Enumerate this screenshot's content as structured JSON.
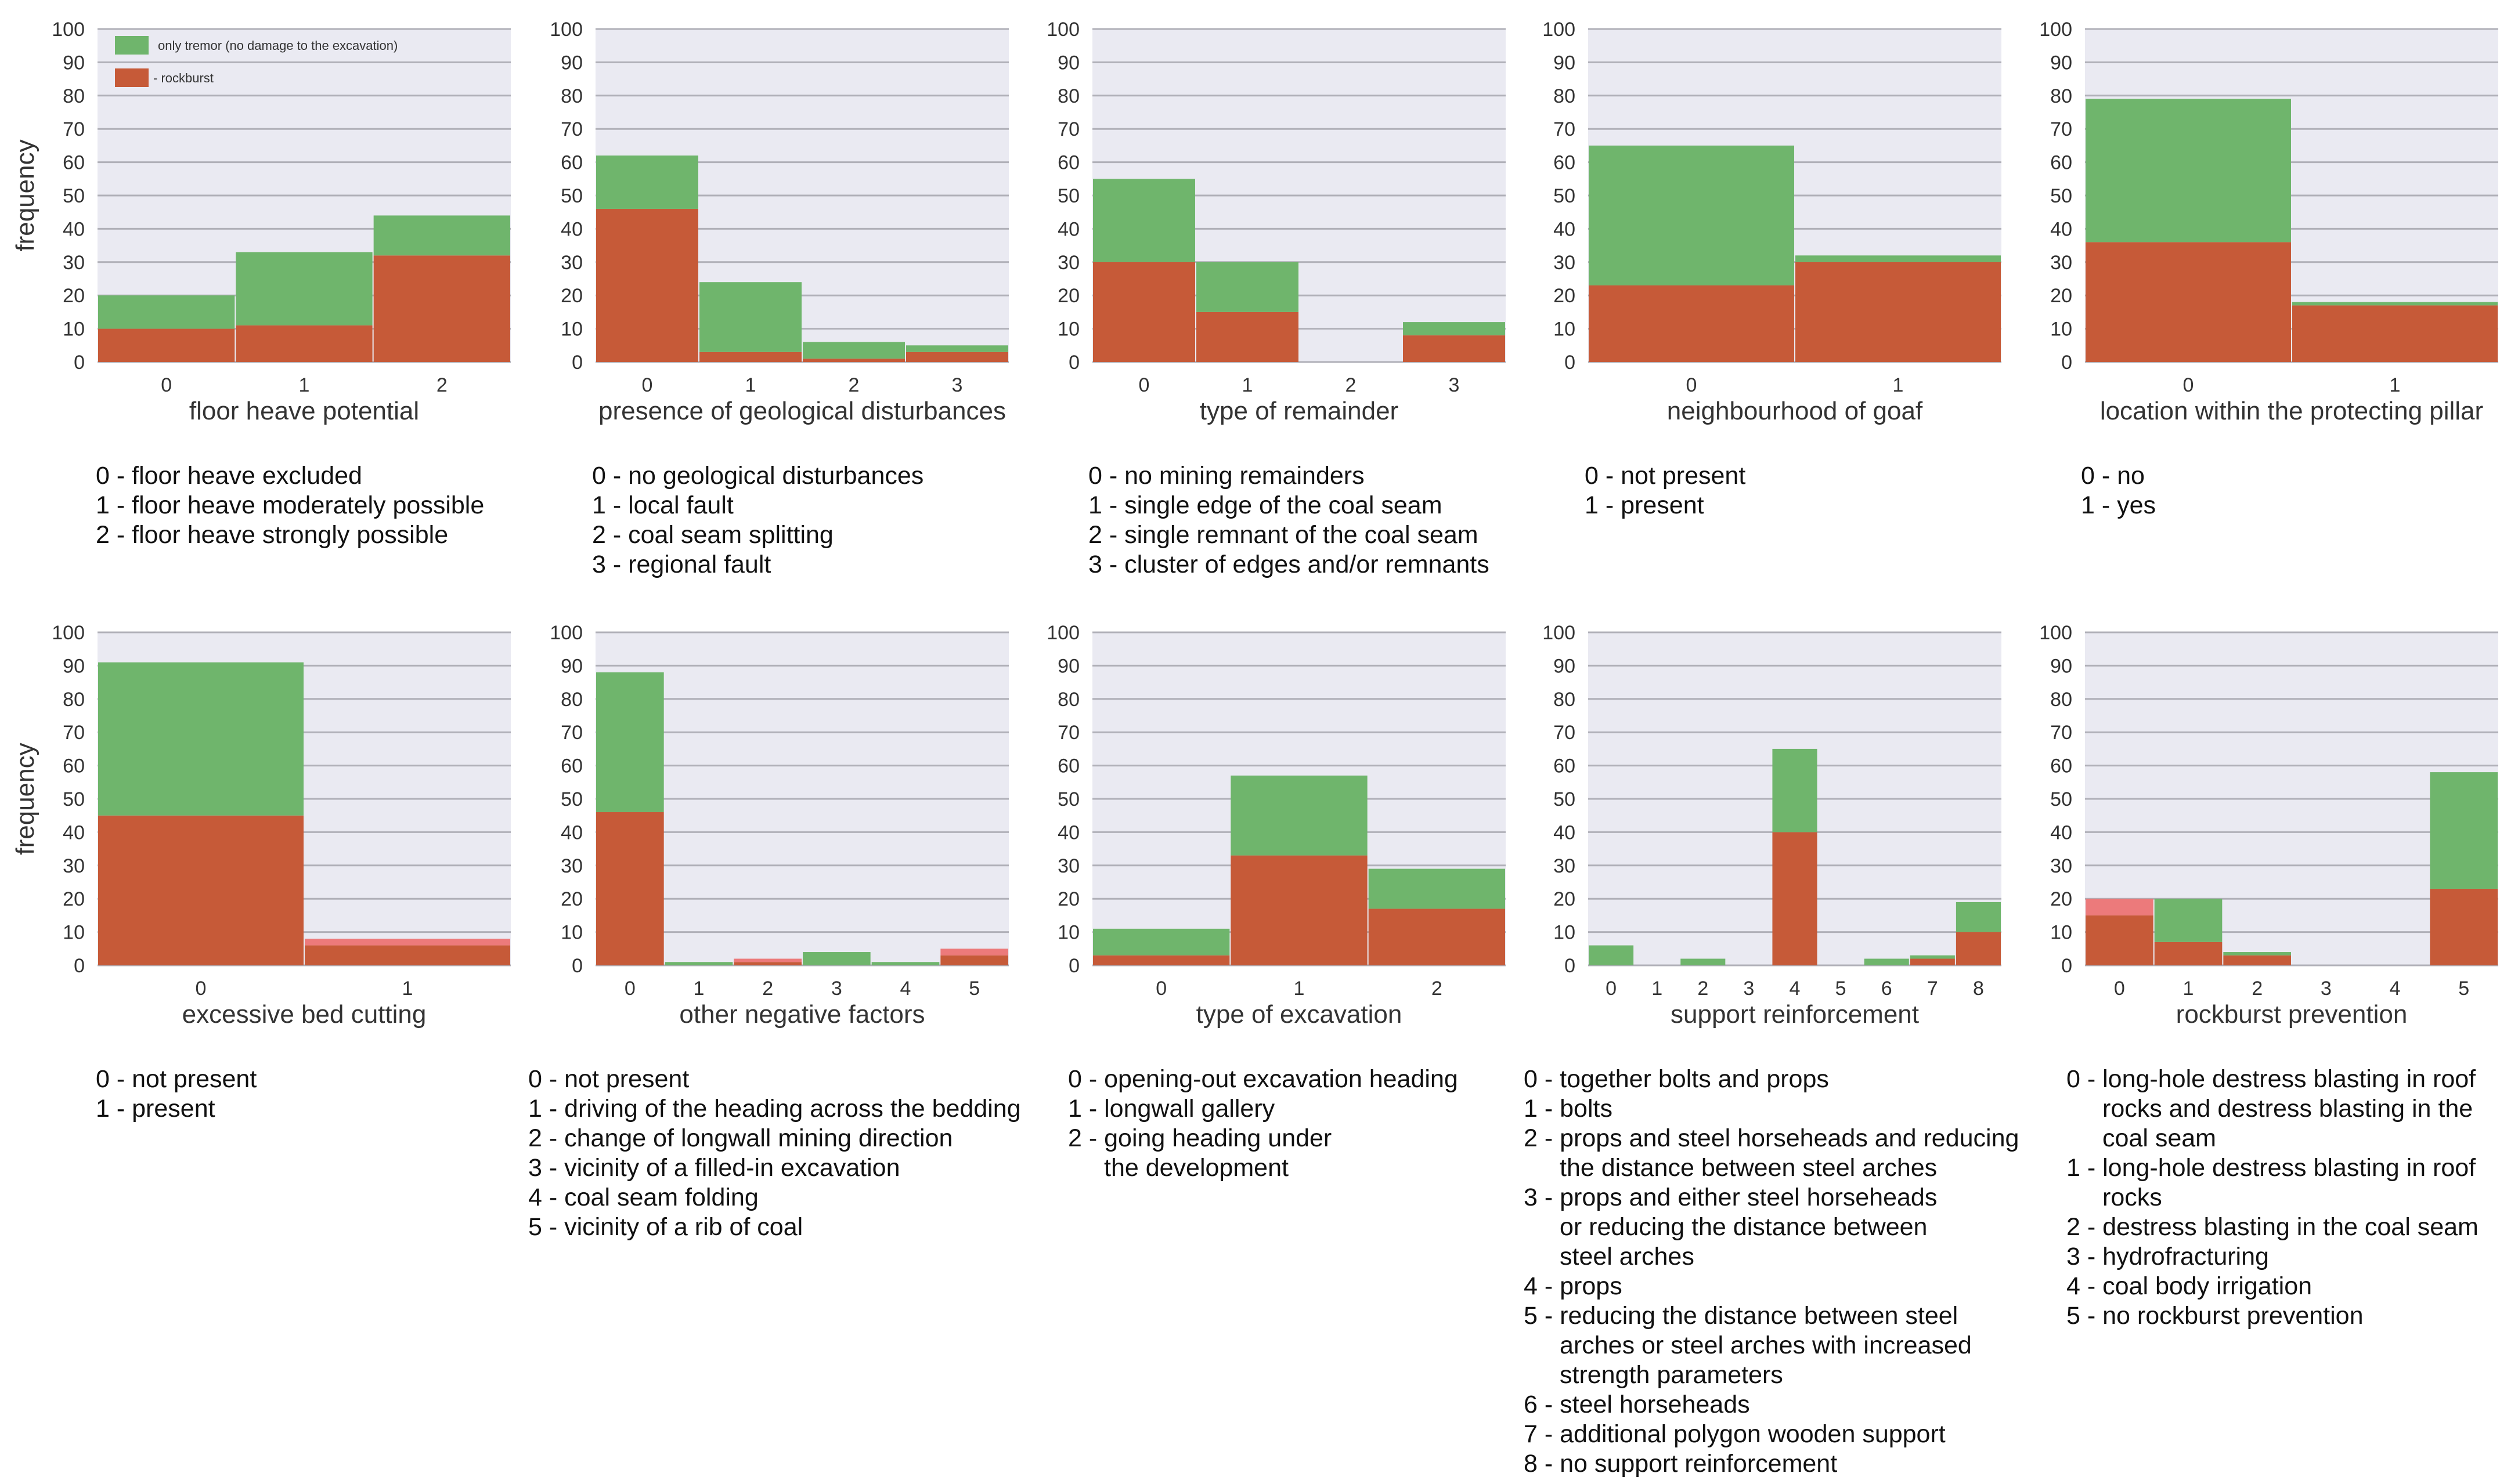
{
  "colors": {
    "tremor": "#6fb56c",
    "rockburst": "#c65a38",
    "pink": "#ec7a7b",
    "plot_bg": "#eaeaf2",
    "grid": "#b0b0b8"
  },
  "legend": {
    "tremor": "only tremor (no damage to the excavation)",
    "rockburst": "- rockburst"
  },
  "ylabel": "frequency",
  "chart_data": [
    {
      "type": "bar",
      "stacked": true,
      "title": "",
      "xlabel": "floor heave potential",
      "ylabel": "frequency",
      "ylim": [
        0,
        100
      ],
      "yticks": [
        0,
        10,
        20,
        30,
        40,
        50,
        60,
        70,
        80,
        90,
        100
      ],
      "categories": [
        "0",
        "1",
        "2"
      ],
      "series": [
        {
          "name": "rockburst",
          "values": [
            10,
            11,
            32
          ]
        },
        {
          "name": "only tremor (no damage to the excavation)",
          "values": [
            10,
            22,
            12
          ]
        }
      ],
      "legend": "top-left"
    },
    {
      "type": "bar",
      "stacked": true,
      "xlabel": "presence of geological disturbances",
      "ylabel": "",
      "ylim": [
        0,
        100
      ],
      "yticks": [
        0,
        10,
        20,
        30,
        40,
        50,
        60,
        70,
        80,
        90,
        100
      ],
      "categories": [
        "0",
        "1",
        "2",
        "3"
      ],
      "series": [
        {
          "name": "rockburst",
          "values": [
            46,
            3,
            1,
            3
          ]
        },
        {
          "name": "only tremor (no damage to the excavation)",
          "values": [
            16,
            21,
            5,
            2
          ]
        }
      ]
    },
    {
      "type": "bar",
      "stacked": true,
      "xlabel": "type of remainder",
      "ylabel": "",
      "ylim": [
        0,
        100
      ],
      "yticks": [
        0,
        10,
        20,
        30,
        40,
        50,
        60,
        70,
        80,
        90,
        100
      ],
      "categories": [
        "0",
        "1",
        "2",
        "3"
      ],
      "series": [
        {
          "name": "rockburst",
          "values": [
            30,
            15,
            0,
            8
          ]
        },
        {
          "name": "only tremor (no damage to the excavation)",
          "values": [
            25,
            15,
            0,
            4
          ]
        }
      ]
    },
    {
      "type": "bar",
      "stacked": true,
      "xlabel": "neighbourhood of goaf",
      "ylabel": "",
      "ylim": [
        0,
        100
      ],
      "yticks": [
        0,
        10,
        20,
        30,
        40,
        50,
        60,
        70,
        80,
        90,
        100
      ],
      "categories": [
        "0",
        "1"
      ],
      "series": [
        {
          "name": "rockburst",
          "values": [
            23,
            30
          ]
        },
        {
          "name": "only tremor (no damage to the excavation)",
          "values": [
            42,
            2
          ]
        }
      ]
    },
    {
      "type": "bar",
      "stacked": true,
      "xlabel": "location within the protecting pillar",
      "ylabel": "",
      "ylim": [
        0,
        100
      ],
      "yticks": [
        0,
        10,
        20,
        30,
        40,
        50,
        60,
        70,
        80,
        90,
        100
      ],
      "categories": [
        "0",
        "1"
      ],
      "series": [
        {
          "name": "rockburst",
          "values": [
            36,
            17
          ]
        },
        {
          "name": "only tremor (no damage to the excavation)",
          "values": [
            43,
            1
          ]
        }
      ]
    },
    {
      "type": "bar",
      "stacked": true,
      "xlabel": "excessive bed cutting",
      "ylabel": "frequency",
      "ylim": [
        0,
        100
      ],
      "yticks": [
        0,
        10,
        20,
        30,
        40,
        50,
        60,
        70,
        80,
        90,
        100
      ],
      "categories": [
        "0",
        "1"
      ],
      "series": [
        {
          "name": "rockburst",
          "values": [
            45,
            6
          ]
        },
        {
          "name": "only tremor (no damage to the excavation)",
          "values": [
            46,
            2
          ]
        }
      ]
    },
    {
      "type": "bar",
      "stacked": true,
      "xlabel": "other negative factors",
      "ylabel": "",
      "ylim": [
        0,
        100
      ],
      "yticks": [
        0,
        10,
        20,
        30,
        40,
        50,
        60,
        70,
        80,
        90,
        100
      ],
      "categories": [
        "0",
        "1",
        "2",
        "3",
        "4",
        "5"
      ],
      "series": [
        {
          "name": "rockburst",
          "values": [
            46,
            0,
            1,
            0,
            0,
            3
          ]
        },
        {
          "name": "only tremor (no damage to the excavation)",
          "values": [
            42,
            1,
            1,
            4,
            1,
            2
          ]
        }
      ]
    },
    {
      "type": "bar",
      "stacked": true,
      "xlabel": "type of excavation",
      "ylabel": "",
      "ylim": [
        0,
        100
      ],
      "yticks": [
        0,
        10,
        20,
        30,
        40,
        50,
        60,
        70,
        80,
        90,
        100
      ],
      "categories": [
        "0",
        "1",
        "2"
      ],
      "series": [
        {
          "name": "rockburst",
          "values": [
            3,
            33,
            17
          ]
        },
        {
          "name": "only tremor (no damage to the excavation)",
          "values": [
            8,
            24,
            12
          ]
        }
      ]
    },
    {
      "type": "bar",
      "stacked": true,
      "xlabel": "support reinforcement",
      "ylabel": "",
      "ylim": [
        0,
        100
      ],
      "yticks": [
        0,
        10,
        20,
        30,
        40,
        50,
        60,
        70,
        80,
        90,
        100
      ],
      "categories": [
        "0",
        "1",
        "2",
        "3",
        "4",
        "5",
        "6",
        "7",
        "8"
      ],
      "series": [
        {
          "name": "rockburst",
          "values": [
            0,
            0,
            0,
            0,
            40,
            0,
            0,
            2,
            10
          ]
        },
        {
          "name": "only tremor (no damage to the excavation)",
          "values": [
            6,
            0,
            2,
            0,
            25,
            0,
            2,
            1,
            9
          ]
        }
      ]
    },
    {
      "type": "bar",
      "stacked": true,
      "xlabel": "rockburst prevention",
      "ylabel": "",
      "ylim": [
        0,
        100
      ],
      "yticks": [
        0,
        10,
        20,
        30,
        40,
        50,
        60,
        70,
        80,
        90,
        100
      ],
      "categories": [
        "0",
        "1",
        "2",
        "3",
        "4",
        "5"
      ],
      "series": [
        {
          "name": "rockburst",
          "values": [
            15,
            7,
            3,
            0,
            0,
            23
          ]
        },
        {
          "name": "only tremor (no damage to the excavation)",
          "values": [
            5,
            13,
            1,
            0,
            0,
            35
          ]
        }
      ]
    }
  ],
  "descriptions": [
    [
      "0 - floor heave excluded",
      "1 - floor heave moderately possible",
      "2 - floor heave strongly possible"
    ],
    [
      "0 - no geological disturbances",
      "1 - local fault",
      "2 - coal seam splitting",
      "3 - regional fault"
    ],
    [
      "0 - no mining remainders",
      "1 - single edge of the coal seam",
      "2 - single remnant of the coal seam",
      "3 - cluster of edges and/or remnants"
    ],
    [
      "0 - not present",
      "1 - present"
    ],
    [
      "0 - no",
      "1 - yes"
    ],
    [
      "0 - not present",
      "1 - present"
    ],
    [
      "0 - not present",
      "1 - driving of the heading across the bedding",
      "2 - change of longwall mining direction",
      "3 - vicinity of a filled-in excavation",
      "4 - coal seam folding",
      "5 - vicinity of a rib of coal"
    ],
    [
      "0 - opening-out excavation heading",
      "1 - longwall gallery",
      "2 - going heading under",
      "the development"
    ],
    [
      "0 - together bolts and props",
      "1 - bolts",
      "2 - props and steel horseheads and reducing",
      "the distance between steel arches",
      "3 - props and either steel horseheads",
      "or reducing the distance between",
      "steel arches",
      "4 - props",
      "5 - reducing the distance between steel",
      "arches or steel arches with increased",
      "strength parameters",
      "6 - steel horseheads",
      "7 - additional polygon wooden support",
      "8 - no support reinforcement"
    ],
    [
      "0 - long-hole destress blasting in roof",
      "rocks and destress blasting in the",
      "coal seam",
      "1 - long-hole destress blasting in roof",
      "rocks",
      "2 - destress blasting in the coal seam",
      "3 - hydrofracturing",
      "4 - coal body irrigation",
      "5 - no rockburst prevention"
    ]
  ]
}
